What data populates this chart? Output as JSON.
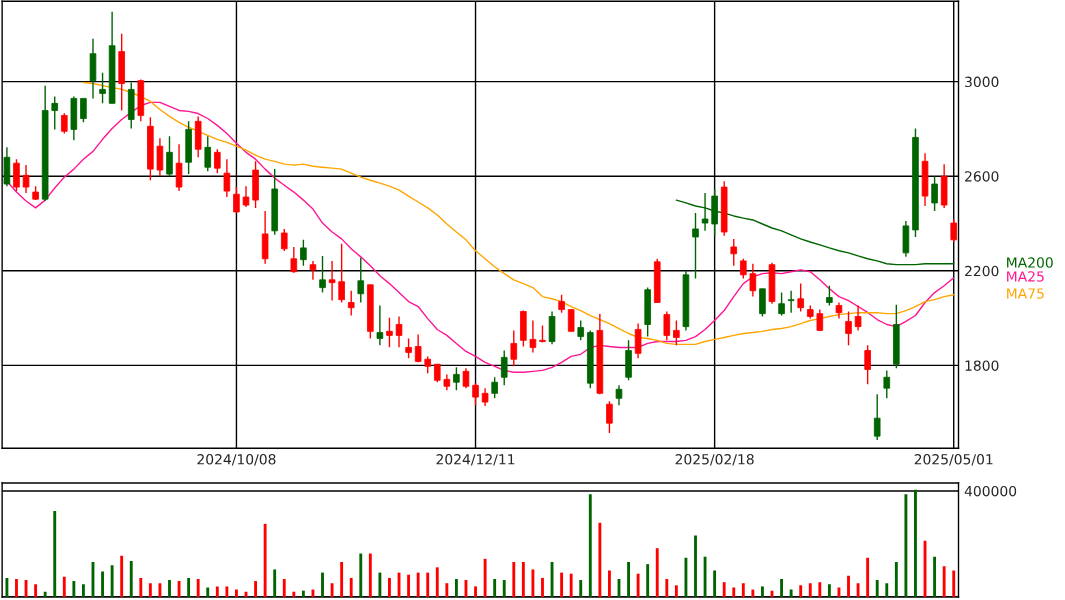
{
  "chart_data": [
    {
      "type": "candlestick",
      "categories": [
        null,
        null,
        null,
        null,
        null,
        null,
        null,
        null,
        null,
        null,
        null,
        null,
        null,
        null,
        null,
        null,
        null,
        null,
        null,
        null,
        null,
        null,
        null,
        null,
        "2024/10/08",
        null,
        null,
        null,
        null,
        null,
        null,
        null,
        null,
        null,
        null,
        null,
        null,
        null,
        null,
        null,
        null,
        null,
        null,
        null,
        null,
        null,
        null,
        null,
        null,
        "2024/12/11",
        null,
        null,
        null,
        null,
        null,
        null,
        null,
        null,
        null,
        null,
        null,
        null,
        null,
        null,
        null,
        null,
        null,
        null,
        null,
        null,
        null,
        null,
        null,
        null,
        "2025/02/18",
        null,
        null,
        null,
        null,
        null,
        null,
        null,
        null,
        null,
        null,
        null,
        null,
        null,
        null,
        null,
        null,
        null,
        null,
        null,
        null,
        null,
        null,
        null,
        null,
        "2025/05/01"
      ],
      "ohlc": [
        [
          2567,
          2722,
          2558,
          2680
        ],
        [
          2655,
          2672,
          2537,
          2554
        ],
        [
          2604,
          2647,
          2529,
          2554
        ],
        [
          2533,
          2558,
          2499,
          2503
        ],
        [
          2503,
          2983,
          2495,
          2878
        ],
        [
          2878,
          2937,
          2798,
          2908
        ],
        [
          2857,
          2866,
          2781,
          2790
        ],
        [
          2798,
          2937,
          2752,
          2929
        ],
        [
          2844,
          2929,
          2828,
          2929
        ],
        [
          3004,
          3181,
          2929,
          3118
        ],
        [
          2950,
          3038,
          2908,
          2967
        ],
        [
          2908,
          3295,
          2908,
          3152
        ],
        [
          3127,
          3202,
          2878,
          2992
        ],
        [
          2840,
          2996,
          2802,
          2967
        ],
        [
          3004,
          3009,
          2832,
          2857
        ],
        [
          2811,
          2849,
          2583,
          2630
        ],
        [
          2727,
          2760,
          2600,
          2626
        ],
        [
          2609,
          2769,
          2600,
          2701
        ],
        [
          2655,
          2735,
          2537,
          2554
        ],
        [
          2659,
          2832,
          2609,
          2798
        ],
        [
          2832,
          2853,
          2680,
          2714
        ],
        [
          2638,
          2769,
          2621,
          2722
        ],
        [
          2701,
          2714,
          2613,
          2634
        ],
        [
          2613,
          2672,
          2512,
          2537
        ],
        [
          2524,
          2554,
          2444,
          2449
        ],
        [
          2512,
          2558,
          2470,
          2478
        ],
        [
          2626,
          2663,
          2466,
          2499
        ],
        [
          2356,
          2453,
          2230,
          2251
        ],
        [
          2369,
          2630,
          2352,
          2546
        ],
        [
          2360,
          2377,
          2284,
          2293
        ],
        [
          2251,
          2301,
          2192,
          2196
        ],
        [
          2247,
          2331,
          2221,
          2297
        ],
        [
          2226,
          2242,
          2162,
          2204
        ],
        [
          2129,
          2263,
          2108,
          2162
        ],
        [
          2162,
          2242,
          2074,
          2150
        ],
        [
          2154,
          2314,
          2066,
          2078
        ],
        [
          2066,
          2116,
          2011,
          2044
        ],
        [
          2103,
          2255,
          2066,
          2158
        ],
        [
          2141,
          2141,
          1914,
          1944
        ],
        [
          1914,
          2053,
          1885,
          1939
        ],
        [
          1944,
          2002,
          1877,
          1927
        ],
        [
          1973,
          2007,
          1877,
          1927
        ],
        [
          1876,
          1914,
          1830,
          1855
        ],
        [
          1880,
          1931,
          1813,
          1817
        ],
        [
          1826,
          1838,
          1767,
          1796
        ],
        [
          1805,
          1805,
          1729,
          1737
        ],
        [
          1741,
          1762,
          1695,
          1712
        ],
        [
          1729,
          1792,
          1695,
          1762
        ],
        [
          1775,
          1788,
          1704,
          1712
        ],
        [
          1716,
          1725,
          1632,
          1666
        ],
        [
          1682,
          1704,
          1628,
          1645
        ],
        [
          1682,
          1750,
          1661,
          1729
        ],
        [
          1750,
          1863,
          1716,
          1834
        ],
        [
          1893,
          1948,
          1796,
          1826
        ],
        [
          2028,
          2032,
          1880,
          1906
        ],
        [
          1910,
          1990,
          1855,
          1876
        ],
        [
          1906,
          1969,
          1897,
          1901
        ],
        [
          1901,
          2028,
          1889,
          2007
        ],
        [
          2070,
          2099,
          2023,
          2036
        ],
        [
          2036,
          2036,
          1944,
          1944
        ],
        [
          1922,
          1990,
          1906,
          1960
        ],
        [
          1725,
          1948,
          1704,
          1939
        ],
        [
          1948,
          2019,
          1678,
          1682
        ],
        [
          1636,
          1649,
          1514,
          1556
        ],
        [
          1661,
          1716,
          1632,
          1699
        ],
        [
          1750,
          1906,
          1737,
          1863
        ],
        [
          1952,
          1977,
          1830,
          1851
        ],
        [
          1973,
          2129,
          1922,
          2120
        ],
        [
          2238,
          2251,
          2066,
          2066
        ],
        [
          2015,
          2028,
          1906,
          1927
        ],
        [
          1948,
          1990,
          1885,
          1918
        ],
        [
          1964,
          2200,
          1948,
          2183
        ],
        [
          2343,
          2444,
          2167,
          2377
        ],
        [
          2402,
          2529,
          2369,
          2419
        ],
        [
          2398,
          2546,
          2348,
          2516
        ],
        [
          2554,
          2579,
          2348,
          2364
        ],
        [
          2301,
          2335,
          2221,
          2272
        ],
        [
          2242,
          2251,
          2167,
          2183
        ],
        [
          2188,
          2230,
          2091,
          2116
        ],
        [
          2019,
          2124,
          2007,
          2124
        ],
        [
          2226,
          2234,
          2061,
          2070
        ],
        [
          2019,
          2108,
          2011,
          2061
        ],
        [
          2074,
          2116,
          2023,
          2078
        ],
        [
          2082,
          2146,
          2028,
          2044
        ],
        [
          2036,
          2053,
          1998,
          2007
        ],
        [
          2019,
          2036,
          1948,
          1948
        ],
        [
          2066,
          2137,
          2053,
          2087
        ],
        [
          2053,
          2066,
          1998,
          2023
        ],
        [
          1986,
          2028,
          1885,
          1935
        ],
        [
          2007,
          2053,
          1948,
          1964
        ],
        [
          1863,
          1885,
          1720,
          1783
        ],
        [
          1501,
          1678,
          1485,
          1577
        ],
        [
          1704,
          1779,
          1661,
          1750
        ],
        [
          1805,
          2057,
          1788,
          1973
        ],
        [
          2276,
          2411,
          2259,
          2390
        ],
        [
          2373,
          2802,
          2343,
          2764
        ],
        [
          2663,
          2697,
          2474,
          2516
        ],
        [
          2487,
          2600,
          2453,
          2567
        ],
        [
          2600,
          2651,
          2466,
          2478
        ],
        [
          2402,
          2419,
          2322,
          2331
        ]
      ],
      "colors": [
        "#006400",
        "#ff0000",
        "#ff0000",
        "#ff0000",
        "#006400",
        "#006400",
        "#ff0000",
        "#006400",
        "#006400",
        "#006400",
        "#006400",
        "#006400",
        "#ff0000",
        "#006400",
        "#ff0000",
        "#ff0000",
        "#ff0000",
        "#006400",
        "#ff0000",
        "#006400",
        "#ff0000",
        "#006400",
        "#ff0000",
        "#ff0000",
        "#ff0000",
        "#ff0000",
        "#ff0000",
        "#ff0000",
        "#006400",
        "#ff0000",
        "#ff0000",
        "#006400",
        "#ff0000",
        "#006400",
        "#ff0000",
        "#ff0000",
        "#ff0000",
        "#006400",
        "#ff0000",
        "#006400",
        "#ff0000",
        "#ff0000",
        "#ff0000",
        "#ff0000",
        "#ff0000",
        "#ff0000",
        "#ff0000",
        "#006400",
        "#ff0000",
        "#ff0000",
        "#ff0000",
        "#006400",
        "#006400",
        "#ff0000",
        "#ff0000",
        "#ff0000",
        "#ff0000",
        "#006400",
        "#ff0000",
        "#ff0000",
        "#006400",
        "#006400",
        "#ff0000",
        "#ff0000",
        "#006400",
        "#006400",
        "#ff0000",
        "#006400",
        "#ff0000",
        "#ff0000",
        "#ff0000",
        "#006400",
        "#006400",
        "#006400",
        "#006400",
        "#ff0000",
        "#ff0000",
        "#ff0000",
        "#ff0000",
        "#006400",
        "#ff0000",
        "#006400",
        "#006400",
        "#ff0000",
        "#ff0000",
        "#ff0000",
        "#006400",
        "#ff0000",
        "#ff0000",
        "#ff0000",
        "#ff0000",
        "#006400",
        "#006400",
        "#006400",
        "#006400",
        "#006400",
        "#ff0000",
        "#006400",
        "#ff0000",
        "#ff0000"
      ],
      "series": [
        {
          "type": "line",
          "name": "MA200",
          "color": "#006400",
          "values": [
            null,
            null,
            null,
            null,
            null,
            null,
            null,
            null,
            null,
            null,
            null,
            null,
            null,
            null,
            null,
            null,
            null,
            null,
            null,
            null,
            null,
            null,
            null,
            null,
            null,
            null,
            null,
            null,
            null,
            null,
            null,
            null,
            null,
            null,
            null,
            null,
            null,
            null,
            null,
            null,
            null,
            null,
            null,
            null,
            null,
            null,
            null,
            null,
            null,
            null,
            null,
            null,
            null,
            null,
            null,
            null,
            null,
            null,
            null,
            null,
            null,
            null,
            null,
            null,
            null,
            null,
            null,
            null,
            null,
            null,
            2499,
            2487,
            2474,
            2466,
            2453,
            2444,
            2432,
            2423,
            2415,
            2398,
            2381,
            2369,
            2352,
            2335,
            2322,
            2310,
            2297,
            2285,
            2276,
            2263,
            2251,
            2242,
            2230,
            2226,
            2226,
            2226,
            2230,
            2230,
            2230,
            2230
          ]
        },
        {
          "type": "line",
          "name": "MA25",
          "color": "#ff1493",
          "values": [
            2579,
            2533,
            2495,
            2466,
            2499,
            2550,
            2596,
            2630,
            2672,
            2705,
            2756,
            2802,
            2840,
            2870,
            2899,
            2912,
            2912,
            2895,
            2878,
            2874,
            2865,
            2844,
            2815,
            2781,
            2739,
            2701,
            2672,
            2630,
            2592,
            2562,
            2533,
            2499,
            2461,
            2402,
            2364,
            2335,
            2293,
            2259,
            2221,
            2179,
            2146,
            2108,
            2070,
            2049,
            1998,
            1952,
            1927,
            1893,
            1859,
            1838,
            1813,
            1796,
            1779,
            1771,
            1771,
            1775,
            1779,
            1792,
            1813,
            1838,
            1847,
            1876,
            1885,
            1880,
            1876,
            1876,
            1876,
            1893,
            1901,
            1901,
            1901,
            1906,
            1922,
            1952,
            1990,
            2032,
            2091,
            2146,
            2175,
            2188,
            2192,
            2188,
            2196,
            2204,
            2196,
            2162,
            2124,
            2091,
            2074,
            2049,
            2024,
            1994,
            1973,
            1964,
            1986,
            2011,
            2066,
            2108,
            2137,
            2171
          ]
        },
        {
          "type": "line",
          "name": "MA75",
          "color": "#ffa500",
          "values": [
            null,
            null,
            null,
            null,
            null,
            null,
            null,
            null,
            2996,
            2992,
            2983,
            2975,
            2967,
            2954,
            2937,
            2916,
            2882,
            2853,
            2828,
            2807,
            2790,
            2773,
            2756,
            2743,
            2727,
            2710,
            2689,
            2672,
            2663,
            2651,
            2647,
            2651,
            2642,
            2638,
            2634,
            2630,
            2613,
            2596,
            2583,
            2571,
            2558,
            2541,
            2516,
            2491,
            2466,
            2436,
            2398,
            2364,
            2331,
            2285,
            2251,
            2217,
            2188,
            2162,
            2146,
            2129,
            2091,
            2082,
            2070,
            2049,
            2032,
            2011,
            1994,
            1977,
            1956,
            1935,
            1918,
            1914,
            1906,
            1893,
            1889,
            1889,
            1889,
            1901,
            1910,
            1918,
            1927,
            1935,
            1939,
            1944,
            1952,
            1956,
            1964,
            1977,
            1990,
            1998,
            2007,
            2015,
            2019,
            2023,
            2023,
            2023,
            2019,
            2019,
            2032,
            2049,
            2070,
            2078,
            2091,
            2099
          ]
        }
      ],
      "ylim": [
        1450,
        3340
      ],
      "yticks": [
        1800,
        2200,
        2600,
        3000
      ],
      "grid": true
    },
    {
      "type": "bar",
      "ylim": [
        0,
        430000
      ],
      "yticks": [
        {
          "value": 0,
          "label": null
        },
        400000
      ],
      "grid": "y",
      "categories": [
        null,
        null,
        null,
        null,
        null,
        null,
        null,
        null,
        null,
        null,
        null,
        null,
        null,
        null,
        null,
        null,
        null,
        null,
        null,
        null,
        null,
        null,
        null,
        null,
        null,
        null,
        null,
        null,
        null,
        null,
        null,
        null,
        null,
        null,
        null,
        null,
        null,
        null,
        null,
        null,
        null,
        null,
        null,
        null,
        null,
        null,
        null,
        null,
        null,
        null,
        null,
        null,
        null,
        null,
        null,
        null,
        null,
        null,
        null,
        null,
        null,
        null,
        null,
        null,
        null,
        null,
        null,
        null,
        null,
        null,
        null,
        null,
        null,
        null,
        null,
        null,
        null,
        null,
        null,
        null,
        null,
        null,
        null,
        null,
        null,
        null,
        null,
        null,
        null,
        null,
        null,
        null,
        null,
        null,
        null,
        null,
        null,
        null,
        null,
        null
      ],
      "values": [
        72000,
        68000,
        64000,
        48000,
        20000,
        324000,
        76000,
        60000,
        48000,
        132000,
        96000,
        120000,
        156000,
        136000,
        72000,
        52000,
        52000,
        64000,
        60000,
        72000,
        68000,
        36000,
        40000,
        40000,
        28000,
        20000,
        60000,
        276000,
        104000,
        68000,
        20000,
        24000,
        28000,
        92000,
        52000,
        132000,
        72000,
        164000,
        164000,
        92000,
        72000,
        92000,
        84000,
        92000,
        92000,
        112000,
        52000,
        68000,
        64000,
        40000,
        144000,
        68000,
        64000,
        132000,
        132000,
        104000,
        72000,
        132000,
        92000,
        88000,
        64000,
        388000,
        280000,
        100000,
        68000,
        132000,
        88000,
        124000,
        184000,
        68000,
        44000,
        148000,
        232000,
        152000,
        100000,
        56000,
        36000,
        52000,
        28000,
        40000,
        24000,
        68000,
        28000,
        44000,
        52000,
        56000,
        48000,
        36000,
        80000,
        52000,
        148000,
        64000,
        52000,
        132000,
        388000,
        405000,
        212000,
        152000,
        116000,
        100000
      ],
      "colors": [
        "#006400",
        "#ff0000",
        "#ff0000",
        "#ff0000",
        "#006400",
        "#006400",
        "#ff0000",
        "#006400",
        "#006400",
        "#006400",
        "#006400",
        "#006400",
        "#ff0000",
        "#006400",
        "#ff0000",
        "#ff0000",
        "#ff0000",
        "#006400",
        "#ff0000",
        "#006400",
        "#ff0000",
        "#006400",
        "#ff0000",
        "#ff0000",
        "#ff0000",
        "#ff0000",
        "#ff0000",
        "#ff0000",
        "#006400",
        "#ff0000",
        "#ff0000",
        "#006400",
        "#ff0000",
        "#006400",
        "#ff0000",
        "#ff0000",
        "#ff0000",
        "#006400",
        "#ff0000",
        "#006400",
        "#ff0000",
        "#ff0000",
        "#ff0000",
        "#ff0000",
        "#ff0000",
        "#ff0000",
        "#ff0000",
        "#006400",
        "#ff0000",
        "#ff0000",
        "#ff0000",
        "#006400",
        "#006400",
        "#ff0000",
        "#ff0000",
        "#ff0000",
        "#ff0000",
        "#006400",
        "#ff0000",
        "#ff0000",
        "#006400",
        "#006400",
        "#ff0000",
        "#ff0000",
        "#006400",
        "#006400",
        "#ff0000",
        "#006400",
        "#ff0000",
        "#ff0000",
        "#ff0000",
        "#006400",
        "#006400",
        "#006400",
        "#006400",
        "#ff0000",
        "#ff0000",
        "#ff0000",
        "#ff0000",
        "#006400",
        "#ff0000",
        "#006400",
        "#006400",
        "#ff0000",
        "#ff0000",
        "#ff0000",
        "#006400",
        "#ff0000",
        "#ff0000",
        "#ff0000",
        "#ff0000",
        "#006400",
        "#006400",
        "#006400",
        "#006400",
        "#006400",
        "#ff0000",
        "#006400",
        "#ff0000",
        "#ff0000"
      ],
      "tick_labels": "y"
    }
  ]
}
